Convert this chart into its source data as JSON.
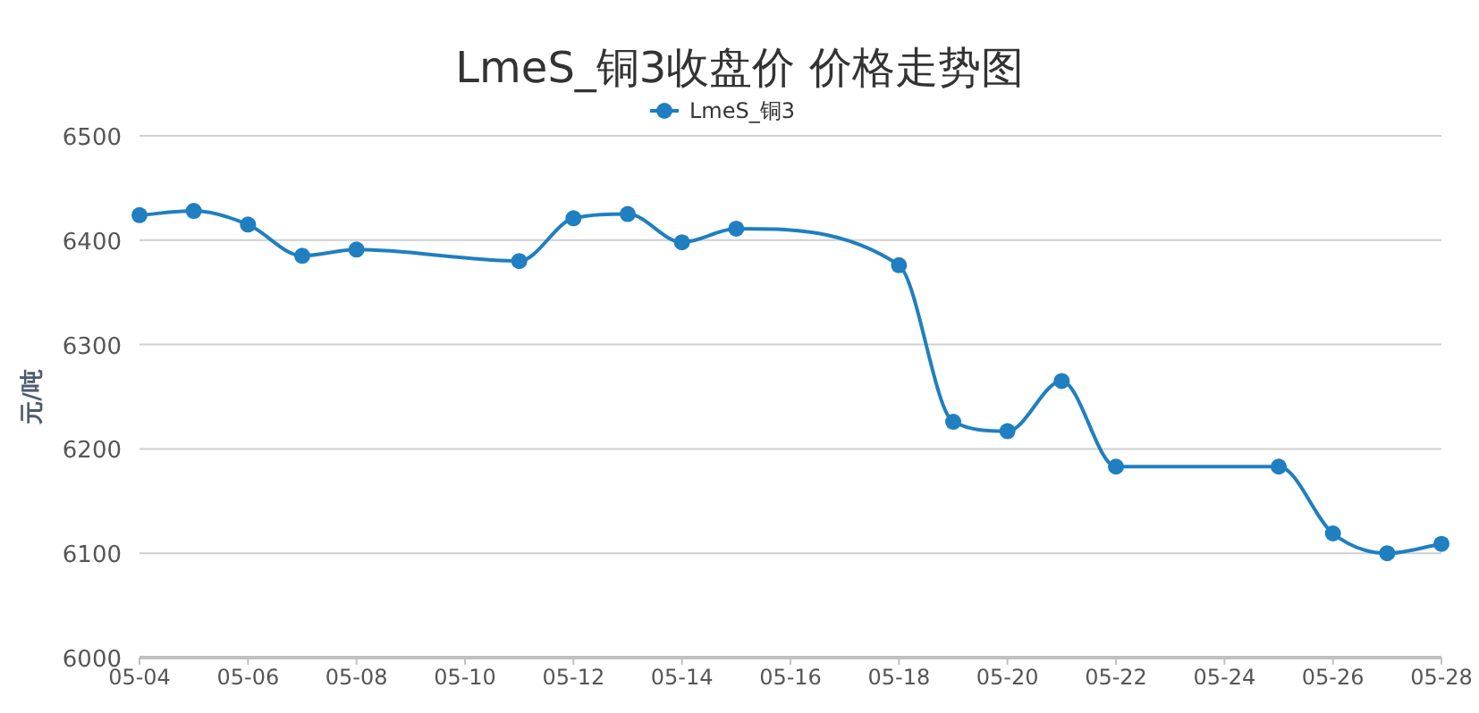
{
  "chart_data": {
    "type": "line",
    "title": "LmeS_铜3收盘价 价格走势图",
    "ylabel": "元/吨",
    "x": [
      "--05-04",
      "--05-05",
      "--05-06",
      "--05-07",
      "--05-08",
      "--05-11",
      "--05-12",
      "--05-13",
      "--05-14",
      "--05-15",
      "--05-18",
      "--05-19",
      "--05-20",
      "--05-21",
      "--05-22",
      "--05-25",
      "--05-26",
      "--05-27",
      "--05-28"
    ],
    "series": [
      {
        "name": "LmeS_铜3",
        "color": "#1f7fc0",
        "values": [
          6424,
          6428,
          6415,
          6385,
          6391,
          6380,
          6421,
          6425,
          6398,
          6411,
          6376,
          6226,
          6217,
          6265,
          6183,
          6183,
          6119,
          6100,
          6109
        ]
      }
    ],
    "xlim": [
      "--05-04",
      "--05-28"
    ],
    "xticks": [
      {
        "value": "--05-04",
        "label": "05-04"
      },
      {
        "value": "--05-06",
        "label": "05-06"
      },
      {
        "value": "--05-08",
        "label": "05-08"
      },
      {
        "value": "--05-10",
        "label": "05-10"
      },
      {
        "value": "--05-12",
        "label": "05-12"
      },
      {
        "value": "--05-14",
        "label": "05-14"
      },
      {
        "value": "--05-16",
        "label": "05-16"
      },
      {
        "value": "--05-18",
        "label": "05-18"
      },
      {
        "value": "--05-20",
        "label": "05-20"
      },
      {
        "value": "--05-22",
        "label": "05-22"
      },
      {
        "value": "--05-24",
        "label": "05-24"
      },
      {
        "value": "--05-26",
        "label": "05-26"
      },
      {
        "value": "--05-28",
        "label": "05-28"
      }
    ],
    "ylim": [
      6000,
      6500
    ],
    "yticks": [
      6000,
      6100,
      6200,
      6300,
      6400,
      6500
    ],
    "grid": "y",
    "legend": "top",
    "marker": "circle",
    "line_style": "solid"
  }
}
